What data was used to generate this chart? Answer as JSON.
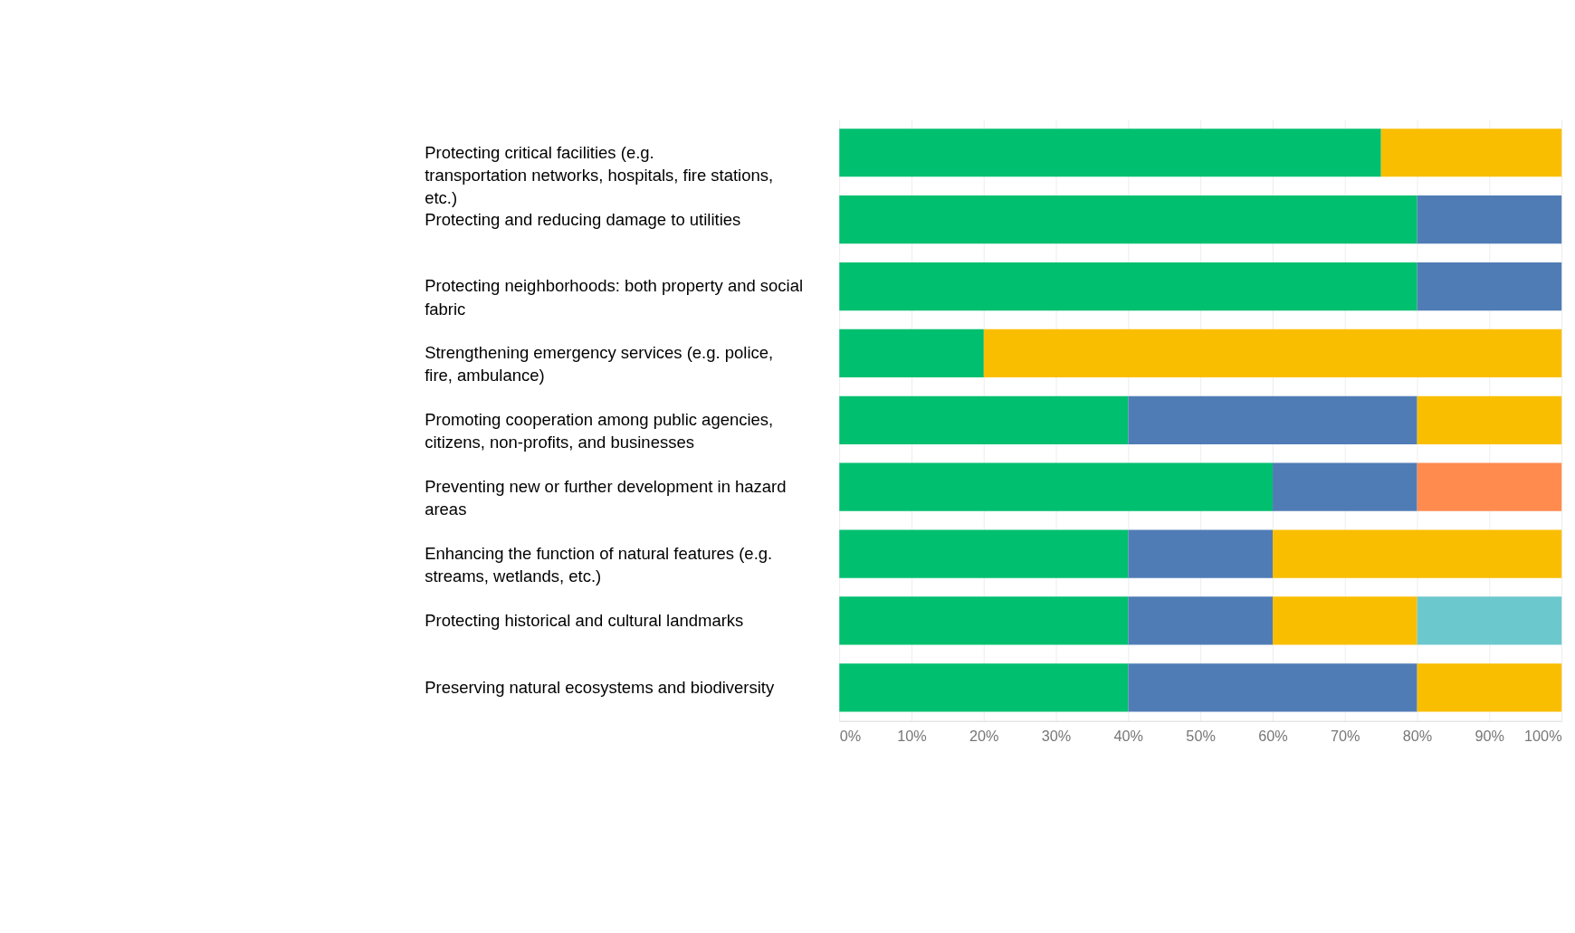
{
  "chart_data": {
    "type": "bar",
    "orientation": "horizontal",
    "stacked": true,
    "categories": [
      "Protecting critical facilities (e.g. transportation networks, hospitals, fire stations, etc.)",
      "Protecting and reducing damage to utilities",
      "Protecting neighborhoods: both property and social fabric",
      "Strengthening emergency services (e.g. police, fire, ambulance)",
      "Promoting cooperation among public agencies, citizens, non-profits, and businesses",
      "Preventing new or further development in hazard areas",
      "Enhancing the function of natural features (e.g. streams, wetlands, etc.)",
      "Protecting historical and cultural landmarks",
      "Preserving natural ecosystems and biodiversity"
    ],
    "series": [
      {
        "color": "#00bf6f",
        "values": [
          75,
          80,
          80,
          20,
          40,
          60,
          40,
          40,
          40
        ]
      },
      {
        "color": "#507cb6",
        "values": [
          null,
          20,
          20,
          null,
          40,
          20,
          20,
          20,
          40
        ]
      },
      {
        "color": "#f9be00",
        "values": [
          25,
          null,
          null,
          80,
          20,
          null,
          40,
          20,
          20
        ]
      },
      {
        "color": "#ff8b4f",
        "values": [
          null,
          null,
          null,
          null,
          null,
          20,
          null,
          null,
          null
        ]
      },
      {
        "color": "#6bc8cd",
        "values": [
          null,
          null,
          null,
          null,
          null,
          null,
          null,
          20,
          null
        ]
      }
    ],
    "xlim": [
      0,
      100
    ],
    "xticks": [
      {
        "value": 0,
        "label": "0%"
      },
      {
        "value": 10,
        "label": "10%"
      },
      {
        "value": 20,
        "label": "20%"
      },
      {
        "value": 30,
        "label": "30%"
      },
      {
        "value": 40,
        "label": "40%"
      },
      {
        "value": 50,
        "label": "50%"
      },
      {
        "value": 60,
        "label": "60%"
      },
      {
        "value": 70,
        "label": "70%"
      },
      {
        "value": 80,
        "label": "80%"
      },
      {
        "value": 90,
        "label": "90%"
      },
      {
        "value": 100,
        "label": "100%"
      }
    ],
    "grid": "x",
    "legend": false
  }
}
